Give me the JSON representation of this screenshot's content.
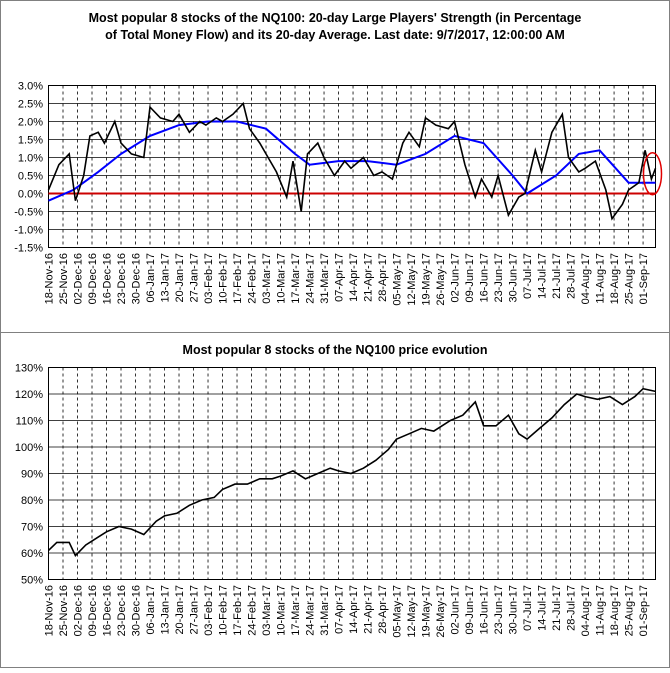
{
  "charts": [
    {
      "title_line1": "Most popular 8 stocks of the NQ100: 20-day Large Players' Strength (in Percentage",
      "title_line2": "of Total Money Flow) and its 20-day Average. Last date: 9/7/2017, 12:00:00 AM",
      "y_ticks": [
        "3.0%",
        "2.5%",
        "2.0%",
        "1.5%",
        "1.0%",
        "0.5%",
        "0.0%",
        "-0.5%",
        "-1.0%",
        "-1.5%"
      ]
    },
    {
      "title": "Most popular 8 stocks of the NQ100 price evolution",
      "y_ticks": [
        "130%",
        "120%",
        "110%",
        "100%",
        "90%",
        "80%",
        "70%",
        "60%",
        "50%"
      ]
    }
  ],
  "x_labels": [
    "18-Nov-16",
    "25-Nov-16",
    "02-Dec-16",
    "09-Dec-16",
    "16-Dec-16",
    "23-Dec-16",
    "30-Dec-16",
    "06-Jan-17",
    "13-Jan-17",
    "20-Jan-17",
    "27-Jan-17",
    "03-Feb-17",
    "10-Feb-17",
    "17-Feb-17",
    "24-Feb-17",
    "03-Mar-17",
    "10-Mar-17",
    "17-Mar-17",
    "24-Mar-17",
    "31-Mar-17",
    "07-Apr-17",
    "14-Apr-17",
    "21-Apr-17",
    "28-Apr-17",
    "05-May-17",
    "12-May-17",
    "19-May-17",
    "26-May-17",
    "02-Jun-17",
    "09-Jun-17",
    "16-Jun-17",
    "23-Jun-17",
    "30-Jun-17",
    "07-Jul-17",
    "14-Jul-17",
    "21-Jul-17",
    "28-Jul-17",
    "04-Aug-17",
    "11-Aug-17",
    "18-Aug-17",
    "25-Aug-17",
    "01-Sep-17"
  ],
  "top_x_labels": [
    "18-Nov-16",
    "25-Nov-16",
    "02-Dec-16",
    "09-Dec-16",
    "16-Dec-16",
    "23-Dec-16",
    "30-Dec-16",
    "06-Jan-17",
    "13-Jan-17",
    "20-Jan-17",
    "27-Jan-17",
    "03-Feb-17",
    "10-Feb-17",
    "17-Feb-17",
    "24-Feb-17",
    "03-Mar-17",
    "10-Mar-17",
    "17-Mar-17",
    "24-Mar-17",
    "31-Mar-17",
    "07-Apr-17",
    "14-Apr-17",
    "21-Apr-17",
    "28-Apr-17",
    "05-May-17",
    "12-May-17",
    "19-May-17",
    "26-May-17",
    "02-Jun-17",
    "09-Jun-17",
    "16-Jun-17",
    "23-Jun-17",
    "30-Jun-17",
    "07-Jul-17",
    "14-Jul-17",
    "21-Jul-17",
    "28-Jul-17",
    "04-Aug-17",
    "11-Aug-17",
    "18-Aug-17",
    "25-Aug-17",
    "01-Sep-17"
  ],
  "colors": {
    "strength": "#000000",
    "average": "#0000ff",
    "zero_line": "#cc0000",
    "highlight": "#e00000",
    "grid": "#000000"
  },
  "chart_data": [
    {
      "type": "line",
      "title": "Most popular 8 stocks of the NQ100: 20-day Large Players' Strength (in Percentage of Total Money Flow) and its 20-day Average. Last date: 9/7/2017, 12:00:00 AM",
      "xlabel": "",
      "ylabel": "",
      "ylim": [
        -1.5,
        3.0
      ],
      "xlim": [
        "2016-11-18",
        "2017-09-07"
      ],
      "grid": true,
      "highlight_last_point": true,
      "series": [
        {
          "x": [
            "2016-11-18",
            "2016-11-23",
            "2016-11-28",
            "2016-12-01",
            "2016-12-05",
            "2016-12-08",
            "2016-12-12",
            "2016-12-15",
            "2016-12-20",
            "2016-12-23",
            "2016-12-28",
            "2017-01-03",
            "2017-01-06",
            "2017-01-11",
            "2017-01-17",
            "2017-01-20",
            "2017-01-25",
            "2017-01-30",
            "2017-02-02",
            "2017-02-07",
            "2017-02-10",
            "2017-02-15",
            "2017-02-20",
            "2017-02-23",
            "2017-02-28",
            "2017-03-03",
            "2017-03-08",
            "2017-03-13",
            "2017-03-16",
            "2017-03-20",
            "2017-03-23",
            "2017-03-28",
            "2017-03-31",
            "2017-04-05",
            "2017-04-10",
            "2017-04-13",
            "2017-04-19",
            "2017-04-24",
            "2017-04-28",
            "2017-05-03",
            "2017-05-08",
            "2017-05-11",
            "2017-05-16",
            "2017-05-19",
            "2017-05-24",
            "2017-05-30",
            "2017-06-02",
            "2017-06-07",
            "2017-06-12",
            "2017-06-15",
            "2017-06-20",
            "2017-06-23",
            "2017-06-28",
            "2017-07-03",
            "2017-07-06",
            "2017-07-11",
            "2017-07-14",
            "2017-07-19",
            "2017-07-24",
            "2017-07-27",
            "2017-08-01",
            "2017-08-04",
            "2017-08-09",
            "2017-08-14",
            "2017-08-17",
            "2017-08-22",
            "2017-08-25",
            "2017-08-30",
            "2017-09-02",
            "2017-09-05",
            "2017-09-07"
          ],
          "y": [
            0.1,
            0.8,
            1.1,
            -0.2,
            0.5,
            1.6,
            1.7,
            1.4,
            2.0,
            1.4,
            1.1,
            1.0,
            2.4,
            2.1,
            2.0,
            2.2,
            1.7,
            2.0,
            1.9,
            2.1,
            2.0,
            2.2,
            2.5,
            1.8,
            1.4,
            1.1,
            0.6,
            -0.1,
            0.9,
            -0.5,
            1.1,
            1.4,
            1.0,
            0.5,
            0.9,
            0.7,
            1.0,
            0.5,
            0.6,
            0.4,
            1.4,
            1.7,
            1.3,
            2.1,
            1.9,
            1.8,
            2.0,
            0.8,
            -0.1,
            0.4,
            -0.1,
            0.5,
            -0.6,
            -0.1,
            0.0,
            1.2,
            0.6,
            1.7,
            2.2,
            1.0,
            0.6,
            0.7,
            0.9,
            0.1,
            -0.7,
            -0.3,
            0.1,
            0.3,
            1.2,
            0.4,
            0.7
          ]
        },
        {
          "x": [
            "2016-11-18",
            "2016-11-30",
            "2016-12-12",
            "2016-12-23",
            "2017-01-06",
            "2017-01-20",
            "2017-02-03",
            "2017-02-17",
            "2017-03-03",
            "2017-03-17",
            "2017-03-24",
            "2017-04-07",
            "2017-04-21",
            "2017-05-05",
            "2017-05-19",
            "2017-06-02",
            "2017-06-16",
            "2017-06-30",
            "2017-07-07",
            "2017-07-21",
            "2017-08-01",
            "2017-08-11",
            "2017-08-25",
            "2017-09-07"
          ],
          "y": [
            -0.2,
            0.1,
            0.6,
            1.1,
            1.6,
            1.9,
            2.0,
            2.0,
            1.8,
            1.1,
            0.8,
            0.9,
            0.9,
            0.8,
            1.1,
            1.6,
            1.4,
            0.5,
            0.0,
            0.5,
            1.1,
            1.2,
            0.3,
            0.3
          ]
        }
      ]
    },
    {
      "type": "line",
      "title": "Most popular 8 stocks of the NQ100 price evolution",
      "xlabel": "",
      "ylabel": "",
      "ylim": [
        50,
        130
      ],
      "xlim": [
        "2016-11-18",
        "2017-09-07"
      ],
      "grid": true,
      "series": [
        {
          "x": [
            "2016-11-18",
            "2016-11-22",
            "2016-11-28",
            "2016-12-01",
            "2016-12-06",
            "2016-12-12",
            "2016-12-16",
            "2016-12-22",
            "2016-12-28",
            "2017-01-03",
            "2017-01-09",
            "2017-01-13",
            "2017-01-19",
            "2017-01-25",
            "2017-01-31",
            "2017-02-06",
            "2017-02-10",
            "2017-02-16",
            "2017-02-22",
            "2017-02-28",
            "2017-03-06",
            "2017-03-10",
            "2017-03-16",
            "2017-03-22",
            "2017-03-28",
            "2017-04-03",
            "2017-04-07",
            "2017-04-13",
            "2017-04-19",
            "2017-04-25",
            "2017-05-01",
            "2017-05-05",
            "2017-05-11",
            "2017-05-17",
            "2017-05-23",
            "2017-05-31",
            "2017-06-06",
            "2017-06-12",
            "2017-06-16",
            "2017-06-22",
            "2017-06-28",
            "2017-07-03",
            "2017-07-07",
            "2017-07-13",
            "2017-07-19",
            "2017-07-25",
            "2017-07-31",
            "2017-08-04",
            "2017-08-10",
            "2017-08-16",
            "2017-08-22",
            "2017-08-28",
            "2017-09-01",
            "2017-09-07"
          ],
          "y": [
            61,
            64,
            64,
            59,
            63,
            66,
            68,
            70,
            69,
            67,
            72,
            74,
            75,
            78,
            80,
            81,
            84,
            86,
            86,
            88,
            88,
            89,
            91,
            88,
            90,
            92,
            91,
            90,
            92,
            95,
            99,
            103,
            105,
            107,
            106,
            110,
            112,
            117,
            108,
            108,
            112,
            105,
            103,
            107,
            111,
            116,
            120,
            119,
            118,
            119,
            116,
            119,
            122,
            121
          ]
        }
      ]
    }
  ]
}
